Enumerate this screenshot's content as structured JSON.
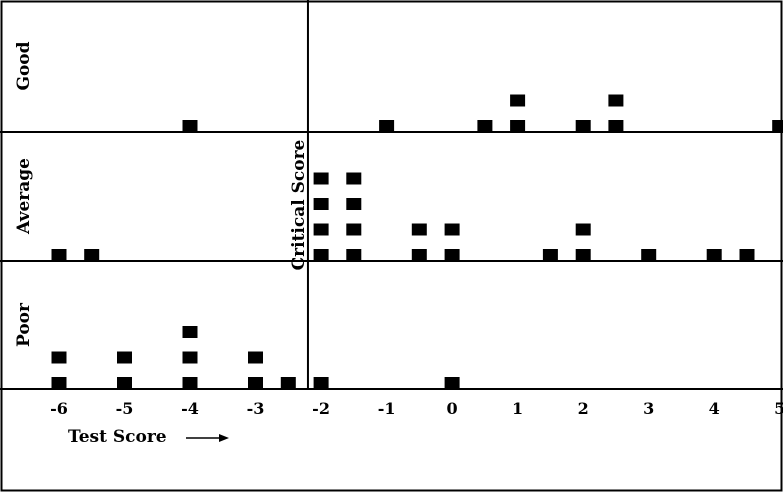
{
  "chart_data": {
    "type": "scatter",
    "title": "",
    "xlabel": "Test Score",
    "ylabel": "",
    "divider_label": "Critical Score",
    "divider_x": -2.2,
    "xlim": [
      -6.9,
      5.05
    ],
    "x_ticks": [
      -6,
      -5,
      -4,
      -3,
      -2,
      -1,
      0,
      1,
      2,
      3,
      4,
      5
    ],
    "x_tick_labels": [
      "-6",
      "-5",
      "-4",
      "-3",
      "-2",
      "-1",
      "0",
      "1",
      "2",
      "3",
      "4",
      "5"
    ],
    "grid": false,
    "legend": "none",
    "marker": "square",
    "categories": [
      "Good",
      "Average",
      "Poor"
    ],
    "series": [
      {
        "name": "Good",
        "points": [
          {
            "x": -4,
            "count": 1
          },
          {
            "x": -1,
            "count": 1
          },
          {
            "x": 0.5,
            "count": 1
          },
          {
            "x": 1,
            "count": 2
          },
          {
            "x": 2,
            "count": 1
          },
          {
            "x": 2.5,
            "count": 2
          },
          {
            "x": 5,
            "count": 1
          }
        ]
      },
      {
        "name": "Average",
        "points": [
          {
            "x": -6,
            "count": 1
          },
          {
            "x": -5.5,
            "count": 1
          },
          {
            "x": -2,
            "count": 4
          },
          {
            "x": -1.5,
            "count": 4
          },
          {
            "x": -0.5,
            "count": 2
          },
          {
            "x": 0,
            "count": 2
          },
          {
            "x": 1.5,
            "count": 1
          },
          {
            "x": 2,
            "count": 2
          },
          {
            "x": 3,
            "count": 1
          },
          {
            "x": 4,
            "count": 1
          },
          {
            "x": 4.5,
            "count": 1
          }
        ]
      },
      {
        "name": "Poor",
        "points": [
          {
            "x": -6,
            "count": 2
          },
          {
            "x": -5,
            "count": 2
          },
          {
            "x": -4,
            "count": 3
          },
          {
            "x": -3,
            "count": 2
          },
          {
            "x": -2.5,
            "count": 1
          },
          {
            "x": -2,
            "count": 1
          },
          {
            "x": 0,
            "count": 1
          }
        ]
      }
    ]
  }
}
